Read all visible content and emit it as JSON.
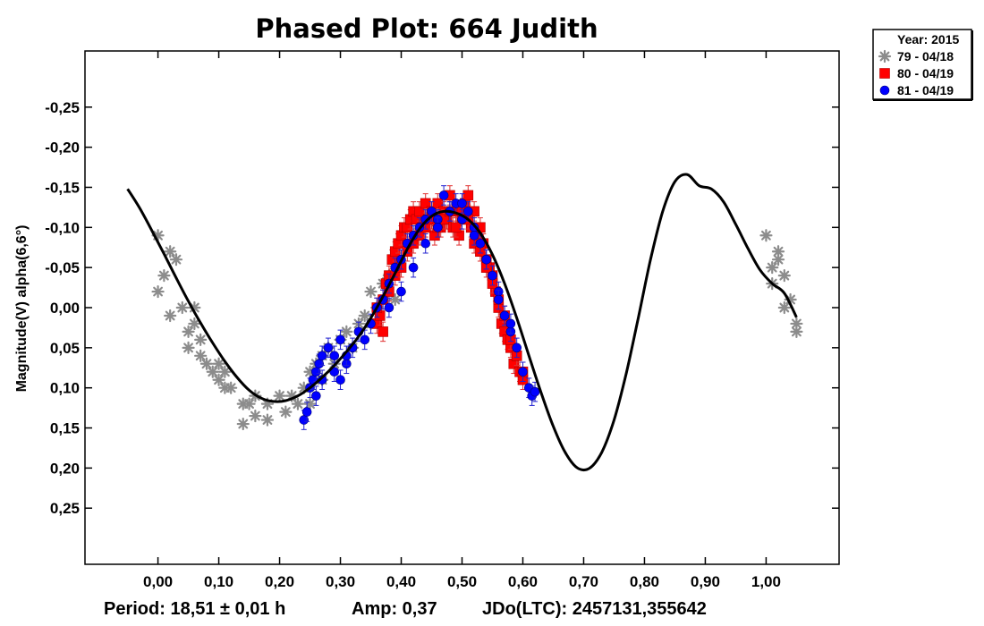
{
  "chart_data": {
    "type": "scatter",
    "title": "Phased Plot: 664 Judith",
    "xlabel": "",
    "ylabel": "Magnitude(V) alpha(6,6°)",
    "xlim": [
      -0.12,
      1.12
    ],
    "ylim": [
      -0.32,
      0.32
    ],
    "y_inverted": true,
    "xticks": [
      0.0,
      0.1,
      0.2,
      0.3,
      0.4,
      0.5,
      0.6,
      0.7,
      0.8,
      0.9,
      1.0
    ],
    "xtick_labels": [
      "0,00",
      "0,10",
      "0,20",
      "0,30",
      "0,40",
      "0,50",
      "0,60",
      "0,70",
      "0,80",
      "0,90",
      "1,00"
    ],
    "yticks": [
      -0.25,
      -0.2,
      -0.15,
      -0.1,
      -0.05,
      0.0,
      0.05,
      0.1,
      0.15,
      0.2,
      0.25
    ],
    "ytick_labels": [
      "-0,25",
      "-0,20",
      "-0,15",
      "-0,10",
      "-0,05",
      "0,00",
      "0,05",
      "0,10",
      "0,15",
      "0,20",
      "0,25"
    ],
    "legend": {
      "title": "Year: 2015",
      "position": "top-right-outside",
      "entries": [
        {
          "label": "79 - 04/18",
          "marker": "asterisk",
          "color": "#8c8c8c"
        },
        {
          "label": "80 - 04/19",
          "marker": "square",
          "color": "#ff0000"
        },
        {
          "label": "81 - 04/19",
          "marker": "circle",
          "color": "#0000ff"
        }
      ]
    },
    "fit_curve": {
      "name": "Fourier fit",
      "color": "#000000",
      "x": [
        -0.05,
        -0.03,
        -0.01,
        0.01,
        0.03,
        0.05,
        0.07,
        0.09,
        0.11,
        0.13,
        0.15,
        0.17,
        0.19,
        0.21,
        0.23,
        0.25,
        0.27,
        0.29,
        0.31,
        0.33,
        0.35,
        0.37,
        0.39,
        0.41,
        0.43,
        0.45,
        0.47,
        0.49,
        0.51,
        0.53,
        0.55,
        0.57,
        0.59,
        0.61,
        0.63,
        0.65,
        0.67,
        0.69,
        0.71,
        0.73,
        0.75,
        0.77,
        0.79,
        0.81,
        0.83,
        0.85,
        0.87,
        0.89,
        0.91,
        0.93,
        0.95,
        0.97,
        0.99,
        1.01,
        1.03,
        1.05
      ],
      "y": [
        -0.148,
        -0.124,
        -0.096,
        -0.067,
        -0.037,
        -0.008,
        0.019,
        0.044,
        0.067,
        0.087,
        0.103,
        0.113,
        0.117,
        0.116,
        0.11,
        0.1,
        0.087,
        0.072,
        0.055,
        0.036,
        0.013,
        -0.014,
        -0.043,
        -0.073,
        -0.098,
        -0.114,
        -0.12,
        -0.118,
        -0.11,
        -0.093,
        -0.066,
        -0.03,
        0.013,
        0.06,
        0.106,
        0.148,
        0.181,
        0.2,
        0.2,
        0.18,
        0.14,
        0.082,
        0.012,
        -0.06,
        -0.12,
        -0.157,
        -0.166,
        -0.152,
        -0.148,
        -0.132,
        -0.104,
        -0.074,
        -0.047,
        -0.03,
        -0.018,
        0.012
      ]
    },
    "series": [
      {
        "name": "79 - 04/18",
        "marker": "asterisk",
        "color": "#8c8c8c",
        "x": [
          0.0,
          0.01,
          0.0,
          0.02,
          0.03,
          0.02,
          0.04,
          0.05,
          0.06,
          0.05,
          0.07,
          0.08,
          0.09,
          0.06,
          0.07,
          0.1,
          0.11,
          0.12,
          0.1,
          0.11,
          0.14,
          0.15,
          0.16,
          0.18,
          0.2,
          0.22,
          0.24,
          0.25,
          0.26,
          0.27,
          0.28,
          0.3,
          0.31,
          0.33,
          0.34,
          0.36,
          0.35,
          0.37,
          0.38,
          0.14,
          0.16,
          0.18,
          0.21,
          0.23,
          0.25,
          0.27,
          0.29,
          0.32,
          0.35,
          0.39,
          1.0,
          1.01,
          1.02,
          1.02,
          1.03,
          1.04,
          1.05,
          1.05,
          1.01,
          1.03
        ],
        "y": [
          -0.09,
          -0.04,
          -0.02,
          -0.07,
          -0.06,
          0.01,
          0.0,
          0.03,
          0.02,
          0.05,
          0.06,
          0.07,
          0.08,
          0.0,
          0.04,
          0.09,
          0.1,
          0.1,
          0.07,
          0.08,
          0.12,
          0.12,
          0.11,
          0.12,
          0.11,
          0.11,
          0.1,
          0.08,
          0.07,
          0.06,
          0.05,
          0.04,
          0.03,
          0.02,
          0.01,
          0.0,
          -0.02,
          -0.03,
          -0.04,
          0.145,
          0.135,
          0.14,
          0.13,
          0.12,
          0.12,
          0.09,
          0.07,
          0.05,
          0.02,
          -0.01,
          -0.09,
          -0.05,
          -0.07,
          -0.06,
          -0.04,
          -0.01,
          0.02,
          0.03,
          -0.03,
          0.0
        ]
      },
      {
        "name": "80 - 04/19",
        "marker": "square",
        "color": "#ff0000",
        "x": [
          0.36,
          0.365,
          0.37,
          0.375,
          0.38,
          0.385,
          0.39,
          0.395,
          0.4,
          0.405,
          0.41,
          0.415,
          0.42,
          0.425,
          0.43,
          0.435,
          0.44,
          0.445,
          0.45,
          0.455,
          0.46,
          0.465,
          0.47,
          0.475,
          0.48,
          0.485,
          0.49,
          0.495,
          0.5,
          0.505,
          0.51,
          0.515,
          0.52,
          0.525,
          0.53,
          0.535,
          0.54,
          0.545,
          0.55,
          0.555,
          0.56,
          0.565,
          0.57,
          0.575,
          0.58,
          0.585,
          0.59,
          0.595,
          0.6,
          0.36,
          0.37,
          0.38,
          0.39,
          0.4,
          0.41,
          0.42,
          0.43,
          0.44,
          0.45,
          0.46,
          0.47,
          0.48,
          0.49,
          0.5,
          0.51,
          0.52,
          0.53,
          0.54,
          0.55,
          0.56,
          0.57,
          0.58,
          0.59,
          0.6
        ],
        "y": [
          0.02,
          0.01,
          -0.01,
          -0.03,
          -0.04,
          -0.06,
          -0.07,
          -0.08,
          -0.09,
          -0.1,
          -0.1,
          -0.11,
          -0.12,
          -0.11,
          -0.12,
          -0.1,
          -0.13,
          -0.11,
          -0.12,
          -0.09,
          -0.13,
          -0.1,
          -0.12,
          -0.11,
          -0.14,
          -0.1,
          -0.12,
          -0.09,
          -0.11,
          -0.13,
          -0.14,
          -0.1,
          -0.12,
          -0.09,
          -0.1,
          -0.08,
          -0.06,
          -0.05,
          -0.04,
          -0.02,
          0.0,
          0.02,
          0.03,
          0.04,
          0.05,
          0.07,
          0.06,
          0.08,
          0.09,
          0.0,
          0.03,
          -0.02,
          -0.04,
          -0.05,
          -0.07,
          -0.08,
          -0.09,
          -0.1,
          -0.11,
          -0.1,
          -0.11,
          -0.12,
          -0.1,
          -0.12,
          -0.11,
          -0.08,
          -0.07,
          -0.05,
          -0.03,
          -0.01,
          0.01,
          0.04,
          0.06,
          0.08
        ]
      },
      {
        "name": "81 - 04/19",
        "marker": "circle",
        "color": "#0000ff",
        "x": [
          0.24,
          0.245,
          0.25,
          0.255,
          0.26,
          0.265,
          0.27,
          0.28,
          0.29,
          0.3,
          0.31,
          0.32,
          0.33,
          0.34,
          0.35,
          0.36,
          0.37,
          0.38,
          0.39,
          0.4,
          0.41,
          0.42,
          0.43,
          0.44,
          0.45,
          0.46,
          0.47,
          0.48,
          0.49,
          0.5,
          0.51,
          0.52,
          0.53,
          0.54,
          0.55,
          0.56,
          0.57,
          0.58,
          0.59,
          0.6,
          0.61,
          0.615,
          0.62,
          0.26,
          0.27,
          0.29,
          0.3,
          0.31,
          0.38,
          0.4,
          0.42,
          0.44,
          0.46,
          0.48,
          0.5,
          0.52,
          0.54,
          0.56,
          0.58
        ],
        "y": [
          0.14,
          0.13,
          0.1,
          0.09,
          0.08,
          0.07,
          0.06,
          0.05,
          0.06,
          0.04,
          0.07,
          0.05,
          0.03,
          0.04,
          0.02,
          0.0,
          -0.01,
          -0.03,
          -0.05,
          -0.06,
          -0.08,
          -0.09,
          -0.1,
          -0.11,
          -0.12,
          -0.11,
          -0.14,
          -0.12,
          -0.13,
          -0.11,
          -0.12,
          -0.1,
          -0.08,
          -0.06,
          -0.04,
          -0.02,
          0.01,
          0.03,
          0.05,
          0.08,
          0.1,
          0.11,
          0.105,
          0.11,
          0.09,
          0.08,
          0.09,
          0.06,
          0.0,
          -0.02,
          -0.05,
          -0.08,
          -0.1,
          -0.12,
          -0.13,
          -0.09,
          -0.06,
          -0.01,
          0.02
        ]
      }
    ],
    "error_bar_half": 0.012
  },
  "footer": {
    "period": "Period: 18,51 ± 0,01 h",
    "amp": "Amp: 0,37",
    "jdo": "JDo(LTC): 2457131,355642"
  }
}
